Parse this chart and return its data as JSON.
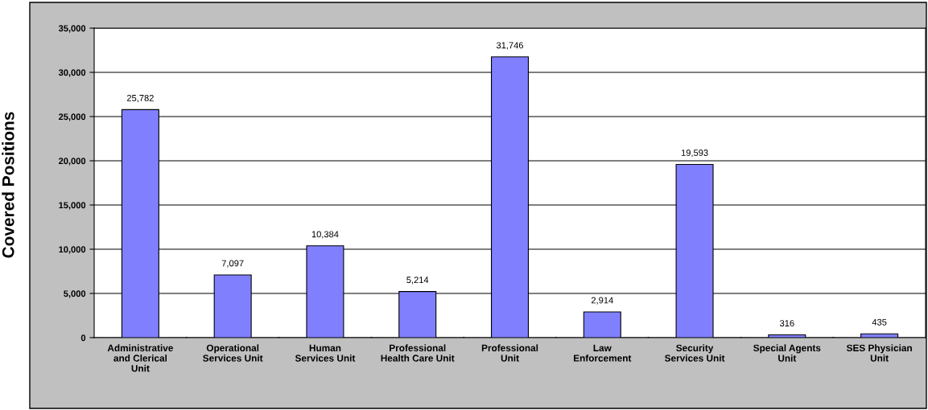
{
  "chart_data": {
    "type": "bar",
    "ylabel": "Covered Positions",
    "categories": [
      "Administrative\nand Clerical\nUnit",
      "Operational\nServices Unit",
      "Human\nServices Unit",
      "Professional\nHealth Care Unit",
      "Professional\nUnit",
      "Law\nEnforcement",
      "Security\nServices Unit",
      "Special Agents\nUnit",
      "SES Physician\nUnit"
    ],
    "values": [
      25782,
      7097,
      10384,
      5214,
      31746,
      2914,
      19593,
      316,
      435
    ],
    "value_labels": [
      "25,782",
      "7,097",
      "10,384",
      "5,214",
      "31,746",
      "2,914",
      "19,593",
      "316",
      "435"
    ],
    "color": "#8080ff",
    "ylim": [
      0,
      35000
    ],
    "yticks": [
      {
        "value": 0,
        "label": "0"
      },
      {
        "value": 5000,
        "label": "5,000"
      },
      {
        "value": 10000,
        "label": "10,000"
      },
      {
        "value": 15000,
        "label": "15,000"
      },
      {
        "value": 20000,
        "label": "20,000"
      },
      {
        "value": 25000,
        "label": "25,000"
      },
      {
        "value": 30000,
        "label": "30,000"
      },
      {
        "value": 35000,
        "label": "35,000"
      }
    ],
    "grid": "y"
  }
}
